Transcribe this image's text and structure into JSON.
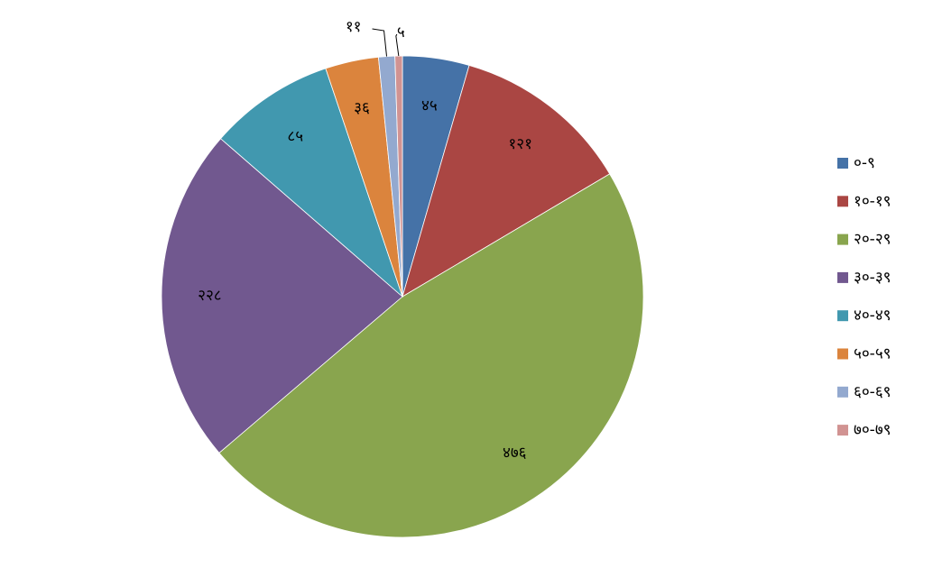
{
  "chart_data": {
    "type": "pie",
    "categories": [
      "०-९",
      "१०-१९",
      "२०-२९",
      "३०-३९",
      "४०-४९",
      "५०-५९",
      "६०-६९",
      "७०-७९"
    ],
    "values": [
      45,
      121,
      476,
      228,
      85,
      36,
      11,
      5
    ],
    "value_labels": [
      "४५",
      "१२१",
      "४७६",
      "२२८",
      "८५",
      "३६",
      "११",
      "५"
    ],
    "colors": [
      "#4572A7",
      "#AA4643",
      "#89A54E",
      "#71588F",
      "#4198AF",
      "#DB843D",
      "#93A9CF",
      "#D19392"
    ],
    "legend": "right"
  }
}
